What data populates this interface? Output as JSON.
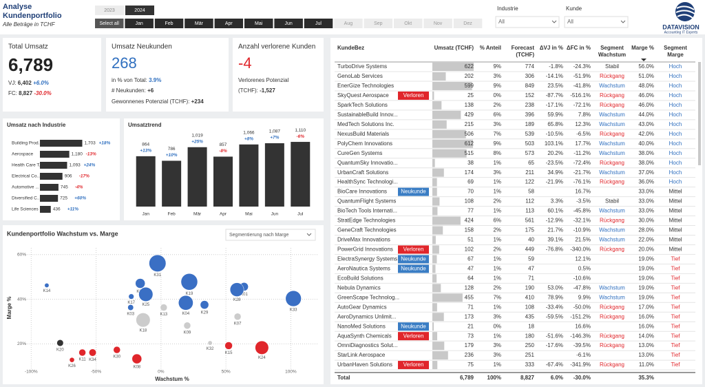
{
  "header": {
    "title_line1": "Analyse",
    "title_line2": "Kundenportfolio",
    "subtitle": "Alle Beträge in TCHF"
  },
  "filters": {
    "years": [
      {
        "label": "2023",
        "selected": false
      },
      {
        "label": "2024",
        "selected": true
      }
    ],
    "months": [
      {
        "label": "Select all",
        "selected": true
      },
      {
        "label": "Jan",
        "selected": true
      },
      {
        "label": "Feb",
        "selected": true
      },
      {
        "label": "Mär",
        "selected": true
      },
      {
        "label": "Apr",
        "selected": true
      },
      {
        "label": "Mai",
        "selected": true
      },
      {
        "label": "Jun",
        "selected": true
      },
      {
        "label": "Jul",
        "selected": true
      },
      {
        "label": "Aug",
        "selected": false
      },
      {
        "label": "Sep",
        "selected": false
      },
      {
        "label": "Okt",
        "selected": false
      },
      {
        "label": "Nov",
        "selected": false
      },
      {
        "label": "Dez",
        "selected": false
      }
    ],
    "dropdowns": [
      {
        "label": "Industrie",
        "value": "All"
      },
      {
        "label": "Kunde",
        "value": "All"
      }
    ]
  },
  "logo": {
    "name": "DATAVISION",
    "tagline": "Accounting IT Experts"
  },
  "kpis": {
    "total": {
      "title": "Total Umsatz",
      "value": "6,789",
      "vj_label": "VJ:",
      "vj": "6,402",
      "vj_change": "+6.0%",
      "fc_label": "FC:",
      "fc": "8,827",
      "fc_change": "-30.0%"
    },
    "neukunden": {
      "title": "Umsatz Neukunden",
      "value": "268",
      "share_label": "in % von Total:",
      "share": "3.9%",
      "count_label": "# Neukunden:",
      "count": "+6",
      "potential_label": "Gewonnenes Potenzial (TCHF):",
      "potential": "+234"
    },
    "verloren": {
      "title": "Anzahl verlorene Kunden",
      "value": "-4",
      "potential_label_1": "Verlorenes Potenzial",
      "potential_label_2": "(TCHF):",
      "potential": "-1,527"
    }
  },
  "chart_data": [
    {
      "type": "hbar",
      "title": "Umsatz nach Industrie",
      "categories": [
        "Building Prod...",
        "Aerospace",
        "Health Care T...",
        "Electrical Co...",
        "Automotive ...",
        "Diversified C...",
        "Life Sciences ..."
      ],
      "values": [
        1703,
        1180,
        1093,
        906,
        745,
        725,
        436
      ],
      "value_labels": [
        "1,703",
        "1,180",
        "1,093",
        "906",
        "745",
        "725",
        "436"
      ],
      "changes": [
        18,
        -13,
        24,
        -17,
        -4,
        60,
        11
      ],
      "change_labels": [
        "+18%",
        "-13%",
        "+24%",
        "-17%",
        "-4%",
        "+60%",
        "+11%"
      ],
      "color": "#333333",
      "positive_color": "#2f6fbf",
      "negative_color": "#e0262b",
      "xlim": [
        0,
        1800
      ]
    },
    {
      "type": "bar",
      "title": "Umsatztrend",
      "categories": [
        "Jan",
        "Feb",
        "Mär",
        "Apr",
        "Mai",
        "Jun",
        "Jul"
      ],
      "values": [
        864,
        786,
        1019,
        857,
        1066,
        1087,
        1110
      ],
      "value_labels": [
        "864",
        "786",
        "1,019",
        "857",
        "1,066",
        "1,087",
        "1,110"
      ],
      "changes": [
        13,
        10,
        25,
        -8,
        8,
        7,
        -6
      ],
      "change_labels": [
        "+13%",
        "+10%",
        "+25%",
        "-8%",
        "+8%",
        "+7%",
        "-6%"
      ],
      "color": "#333333",
      "positive_color": "#2f6fbf",
      "negative_color": "#e0262b",
      "ylim": [
        0,
        1400
      ]
    },
    {
      "type": "scatter",
      "title": "Kundenportfolio Wachstum vs. Marge",
      "dropdown": "Segmentierung nach Marge",
      "xlabel": "Wachstum %",
      "ylabel": "Marge %",
      "xlim": [
        -106,
        121
      ],
      "ylim": [
        9,
        63
      ],
      "xticks": [
        {
          "value": -100,
          "label": "-100%"
        },
        {
          "value": -50,
          "label": "-50%"
        },
        {
          "value": 0,
          "label": "0%"
        },
        {
          "value": 50,
          "label": "50%"
        },
        {
          "value": 100,
          "label": "100%"
        }
      ],
      "yticks": [
        {
          "value": 20,
          "label": "20%"
        },
        {
          "value": 40,
          "label": "40%"
        },
        {
          "value": 60,
          "label": "60%"
        }
      ],
      "grid": true,
      "labels": [
        "K31",
        "K14",
        "K06",
        "K19",
        "K17",
        "K25",
        "K01",
        "K28",
        "K33",
        "K03",
        "K04",
        "K29",
        "K13",
        "K18",
        "K07",
        "K09",
        "K20",
        "K32",
        "K24",
        "K15",
        "K34",
        "K08",
        "K26",
        "K11",
        "K30"
      ],
      "x": [
        -2.7,
        -88,
        -16,
        21.8,
        -22.9,
        -11.7,
        64,
        58.5,
        102,
        -23.4,
        19.1,
        33.5,
        2.1,
        -13.8,
        59,
        20.2,
        -77.7,
        37.8,
        77.7,
        52.1,
        -52.7,
        -18.6,
        -68.6,
        -60.6,
        -34
      ],
      "y": [
        56.1,
        46.2,
        47.1,
        47.8,
        41.2,
        42.2,
        45.6,
        44.3,
        40.3,
        36.3,
        38.4,
        37.5,
        36.3,
        30.7,
        32.2,
        28.2,
        20.4,
        20.4,
        18.3,
        19.2,
        16.1,
        13.3,
        12.8,
        16.1,
        17.3
      ],
      "sizes": [
        600,
        40,
        200,
        580,
        60,
        420,
        150,
        400,
        520,
        70,
        450,
        150,
        100,
        420,
        100,
        100,
        90,
        40,
        380,
        120,
        110,
        200,
        50,
        100,
        100
      ],
      "colors": [
        "#3a6fc4",
        "#3a6fc4",
        "#3a6fc4",
        "#3a6fc4",
        "#3a6fc4",
        "#3a6fc4",
        "#3a6fc4",
        "#3a6fc4",
        "#3a6fc4",
        "#3a6fc4",
        "#3a6fc4",
        "#3a6fc4",
        "#cccccc",
        "#cccccc",
        "#cccccc",
        "#cccccc",
        "#333333",
        "#cccccc",
        "#e0262b",
        "#e0262b",
        "#e0262b",
        "#e0262b",
        "#e0262b",
        "#e0262b",
        "#e0262b"
      ]
    }
  ],
  "table": {
    "headers": [
      [
        "KundeBez"
      ],
      [
        "Umsatz (TCHF)"
      ],
      [
        "% Anteil"
      ],
      [
        "Forecast",
        "(TCHF)"
      ],
      [
        "ΔVJ in %"
      ],
      [
        "ΔFC in %"
      ],
      [
        "Segment",
        "Wachstum"
      ],
      [
        "Marge %"
      ],
      [
        "Segment",
        "Marge"
      ]
    ],
    "bar_color": "#c8c8c8",
    "tag_colors": {
      "Verloren": "#e0262b",
      "Neukunde": "#3a7dc4"
    },
    "text_colors": {
      "Wachstum": "#2f6fbf",
      "Rückgang": "#e0262b",
      "Hoch": "#2f6fbf",
      "Tief": "#e0262b"
    },
    "rows": [
      [
        "TurboDrive Systems",
        null,
        622,
        "9%",
        "774",
        "-1.8%",
        "-24.3%",
        "Stabil",
        "56.0%",
        "Hoch"
      ],
      [
        "GenoLab Services",
        null,
        202,
        "3%",
        "306",
        "-14.1%",
        "-51.9%",
        "Rückgang",
        "51.0%",
        "Hoch"
      ],
      [
        "EnerGize Technologies",
        null,
        599,
        "9%",
        "849",
        "23.5%",
        "-41.8%",
        "Wachstum",
        "48.0%",
        "Hoch"
      ],
      [
        "SkyQuest Aerospace",
        "Verloren",
        25,
        "0%",
        "152",
        "-87.7%",
        "-516.1%",
        "Rückgang",
        "46.0%",
        "Hoch"
      ],
      [
        "SparkTech Solutions",
        null,
        138,
        "2%",
        "238",
        "-17.1%",
        "-72.1%",
        "Rückgang",
        "46.0%",
        "Hoch"
      ],
      [
        "SustainableBuild Innov...",
        null,
        429,
        "6%",
        "396",
        "59.9%",
        "7.8%",
        "Wachstum",
        "44.0%",
        "Hoch"
      ],
      [
        "MedTech Solutions Inc.",
        null,
        215,
        "3%",
        "189",
        "65.8%",
        "12.3%",
        "Wachstum",
        "43.0%",
        "Hoch"
      ],
      [
        "NexusBuild Materials",
        null,
        506,
        "7%",
        "539",
        "-10.5%",
        "-6.5%",
        "Rückgang",
        "42.0%",
        "Hoch"
      ],
      [
        "PolyChem Innovations",
        null,
        612,
        "9%",
        "503",
        "103.1%",
        "17.7%",
        "Wachstum",
        "40.0%",
        "Hoch"
      ],
      [
        "CureGen Systems",
        null,
        515,
        "8%",
        "573",
        "20.2%",
        "-11.2%",
        "Wachstum",
        "38.0%",
        "Hoch"
      ],
      [
        "QuantumSky Innovatio...",
        null,
        38,
        "1%",
        "65",
        "-23.5%",
        "-72.4%",
        "Rückgang",
        "38.0%",
        "Hoch"
      ],
      [
        "UrbanCraft Solutions",
        null,
        174,
        "3%",
        "211",
        "34.9%",
        "-21.7%",
        "Wachstum",
        "37.0%",
        "Hoch"
      ],
      [
        "HealthSync Technologi...",
        null,
        69,
        "1%",
        "122",
        "-21.9%",
        "-76.1%",
        "Rückgang",
        "36.0%",
        "Hoch"
      ],
      [
        "BioCare Innovations",
        "Neukunde",
        70,
        "1%",
        "58",
        null,
        "16.7%",
        null,
        "33.0%",
        "Mittel"
      ],
      [
        "QuantumFlight Systems",
        null,
        108,
        "2%",
        "112",
        "3.3%",
        "-3.5%",
        "Stabil",
        "33.0%",
        "Mittel"
      ],
      [
        "BioTech Tools Internati...",
        null,
        77,
        "1%",
        "113",
        "60.1%",
        "-45.8%",
        "Wachstum",
        "33.0%",
        "Mittel"
      ],
      [
        "StratEdge Technologies",
        null,
        424,
        "6%",
        "561",
        "-12.9%",
        "-32.1%",
        "Rückgang",
        "30.0%",
        "Mittel"
      ],
      [
        "GeneCraft Technologies",
        null,
        158,
        "2%",
        "175",
        "21.7%",
        "-10.9%",
        "Wachstum",
        "28.0%",
        "Mittel"
      ],
      [
        "DriveMax Innovations",
        null,
        51,
        "1%",
        "40",
        "39.1%",
        "21.5%",
        "Wachstum",
        "22.0%",
        "Mittel"
      ],
      [
        "PowerGrid Innovations",
        "Verloren",
        102,
        "2%",
        "449",
        "-76.8%",
        "-340.0%",
        "Rückgang",
        "20.0%",
        "Mittel"
      ],
      [
        "ElectraSynergy Systems",
        "Neukunde",
        67,
        "1%",
        "59",
        null,
        "12.1%",
        null,
        "19.0%",
        "Tief"
      ],
      [
        "AeroNautica Systems",
        "Neukunde",
        47,
        "1%",
        "47",
        null,
        "0.5%",
        null,
        "19.0%",
        "Tief"
      ],
      [
        "EcoBuild Solutions",
        null,
        64,
        "1%",
        "71",
        null,
        "-10.6%",
        null,
        "19.0%",
        "Tief"
      ],
      [
        "Nebula Dynamics",
        null,
        128,
        "2%",
        "190",
        "53.0%",
        "-47.8%",
        "Wachstum",
        "19.0%",
        "Tief"
      ],
      [
        "GreenScape Technolog...",
        null,
        455,
        "7%",
        "410",
        "78.9%",
        "9.9%",
        "Wachstum",
        "19.0%",
        "Tief"
      ],
      [
        "AutoGear Dynamics",
        null,
        71,
        "1%",
        "108",
        "-33.4%",
        "-50.0%",
        "Rückgang",
        "17.0%",
        "Tief"
      ],
      [
        "AeroDynamics Unlimit...",
        null,
        173,
        "3%",
        "435",
        "-59.5%",
        "-151.2%",
        "Rückgang",
        "16.0%",
        "Tief"
      ],
      [
        "NanoMed Solutions",
        "Neukunde",
        21,
        "0%",
        "18",
        null,
        "16.6%",
        null,
        "16.0%",
        "Tief"
      ],
      [
        "AquaSynth Chemicals",
        "Verloren",
        73,
        "1%",
        "180",
        "-51.6%",
        "-146.3%",
        "Rückgang",
        "14.0%",
        "Tief"
      ],
      [
        "OmniDiagnostics Solut...",
        null,
        179,
        "3%",
        "250",
        "-17.6%",
        "-39.5%",
        "Rückgang",
        "13.0%",
        "Tief"
      ],
      [
        "StarLink Aerospace",
        null,
        236,
        "3%",
        "251",
        null,
        "-6.1%",
        null,
        "13.0%",
        "Tief"
      ],
      [
        "UrbanHaven Solutions",
        "Verloren",
        75,
        "1%",
        "333",
        "-67.4%",
        "-341.9%",
        "Rückgang",
        "11.0%",
        "Tief"
      ]
    ],
    "total": [
      "Total",
      null,
      "6,789",
      "100%",
      "8,827",
      "6.0%",
      "-30.0%",
      null,
      "35.3%",
      null
    ]
  }
}
